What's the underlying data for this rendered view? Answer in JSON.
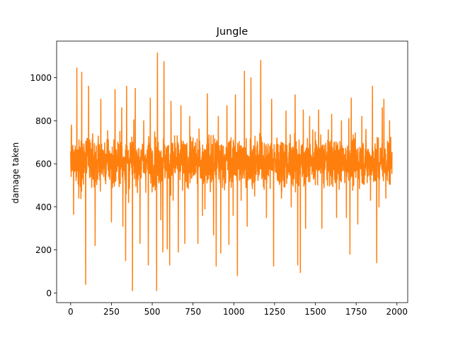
{
  "chart_data": {
    "type": "line",
    "title": "Jungle",
    "xlabel": "",
    "ylabel": "damage taken",
    "xlim": [
      -86,
      2066
    ],
    "ylim": [
      -45,
      1170
    ],
    "xticks": [
      0,
      250,
      500,
      750,
      1000,
      1250,
      1500,
      1750,
      2000
    ],
    "yticks": [
      0,
      200,
      400,
      600,
      800,
      1000
    ],
    "grid": false,
    "legend": "none",
    "n_points": 1971,
    "series": [
      {
        "color": "#ff7f0e",
        "typical_band": [
          460,
          780
        ],
        "center": 610,
        "spikes": [
          {
            "x": 5,
            "y": 780
          },
          {
            "x": 18,
            "y": 365
          },
          {
            "x": 38,
            "y": 1045
          },
          {
            "x": 50,
            "y": 440
          },
          {
            "x": 68,
            "y": 1025
          },
          {
            "x": 78,
            "y": 505
          },
          {
            "x": 92,
            "y": 40
          },
          {
            "x": 110,
            "y": 960
          },
          {
            "x": 125,
            "y": 610
          },
          {
            "x": 150,
            "y": 220
          },
          {
            "x": 185,
            "y": 900
          },
          {
            "x": 250,
            "y": 330
          },
          {
            "x": 272,
            "y": 945
          },
          {
            "x": 302,
            "y": 750
          },
          {
            "x": 313,
            "y": 860
          },
          {
            "x": 320,
            "y": 310
          },
          {
            "x": 337,
            "y": 150
          },
          {
            "x": 343,
            "y": 960
          },
          {
            "x": 355,
            "y": 420
          },
          {
            "x": 379,
            "y": 10
          },
          {
            "x": 396,
            "y": 950
          },
          {
            "x": 425,
            "y": 230
          },
          {
            "x": 448,
            "y": 800
          },
          {
            "x": 476,
            "y": 130
          },
          {
            "x": 488,
            "y": 905
          },
          {
            "x": 527,
            "y": 10
          },
          {
            "x": 532,
            "y": 1115
          },
          {
            "x": 553,
            "y": 340
          },
          {
            "x": 565,
            "y": 190
          },
          {
            "x": 572,
            "y": 1075
          },
          {
            "x": 592,
            "y": 205
          },
          {
            "x": 607,
            "y": 130
          },
          {
            "x": 615,
            "y": 890
          },
          {
            "x": 628,
            "y": 430
          },
          {
            "x": 660,
            "y": 190
          },
          {
            "x": 676,
            "y": 870
          },
          {
            "x": 700,
            "y": 230
          },
          {
            "x": 730,
            "y": 820
          },
          {
            "x": 780,
            "y": 230
          },
          {
            "x": 808,
            "y": 360
          },
          {
            "x": 823,
            "y": 390
          },
          {
            "x": 838,
            "y": 925
          },
          {
            "x": 856,
            "y": 470
          },
          {
            "x": 876,
            "y": 270
          },
          {
            "x": 892,
            "y": 125
          },
          {
            "x": 905,
            "y": 820
          },
          {
            "x": 920,
            "y": 185
          },
          {
            "x": 958,
            "y": 870
          },
          {
            "x": 970,
            "y": 225
          },
          {
            "x": 996,
            "y": 360
          },
          {
            "x": 1010,
            "y": 920
          },
          {
            "x": 1022,
            "y": 80
          },
          {
            "x": 1045,
            "y": 430
          },
          {
            "x": 1065,
            "y": 1030
          },
          {
            "x": 1082,
            "y": 310
          },
          {
            "x": 1105,
            "y": 1000
          },
          {
            "x": 1128,
            "y": 450
          },
          {
            "x": 1165,
            "y": 1080
          },
          {
            "x": 1172,
            "y": 530
          },
          {
            "x": 1200,
            "y": 350
          },
          {
            "x": 1232,
            "y": 900
          },
          {
            "x": 1244,
            "y": 125
          },
          {
            "x": 1265,
            "y": 720
          },
          {
            "x": 1292,
            "y": 440
          },
          {
            "x": 1320,
            "y": 845
          },
          {
            "x": 1352,
            "y": 400
          },
          {
            "x": 1376,
            "y": 920
          },
          {
            "x": 1392,
            "y": 130
          },
          {
            "x": 1408,
            "y": 95
          },
          {
            "x": 1426,
            "y": 850
          },
          {
            "x": 1440,
            "y": 300
          },
          {
            "x": 1465,
            "y": 820
          },
          {
            "x": 1520,
            "y": 850
          },
          {
            "x": 1540,
            "y": 300
          },
          {
            "x": 1600,
            "y": 830
          },
          {
            "x": 1630,
            "y": 350
          },
          {
            "x": 1660,
            "y": 800
          },
          {
            "x": 1690,
            "y": 350
          },
          {
            "x": 1705,
            "y": 810
          },
          {
            "x": 1712,
            "y": 180
          },
          {
            "x": 1720,
            "y": 905
          },
          {
            "x": 1760,
            "y": 320
          },
          {
            "x": 1785,
            "y": 820
          },
          {
            "x": 1810,
            "y": 760
          },
          {
            "x": 1838,
            "y": 430
          },
          {
            "x": 1850,
            "y": 960
          },
          {
            "x": 1876,
            "y": 140
          },
          {
            "x": 1890,
            "y": 400
          },
          {
            "x": 1910,
            "y": 860
          },
          {
            "x": 1920,
            "y": 900
          },
          {
            "x": 1932,
            "y": 440
          },
          {
            "x": 1955,
            "y": 800
          },
          {
            "x": 1968,
            "y": 610
          }
        ]
      }
    ]
  }
}
